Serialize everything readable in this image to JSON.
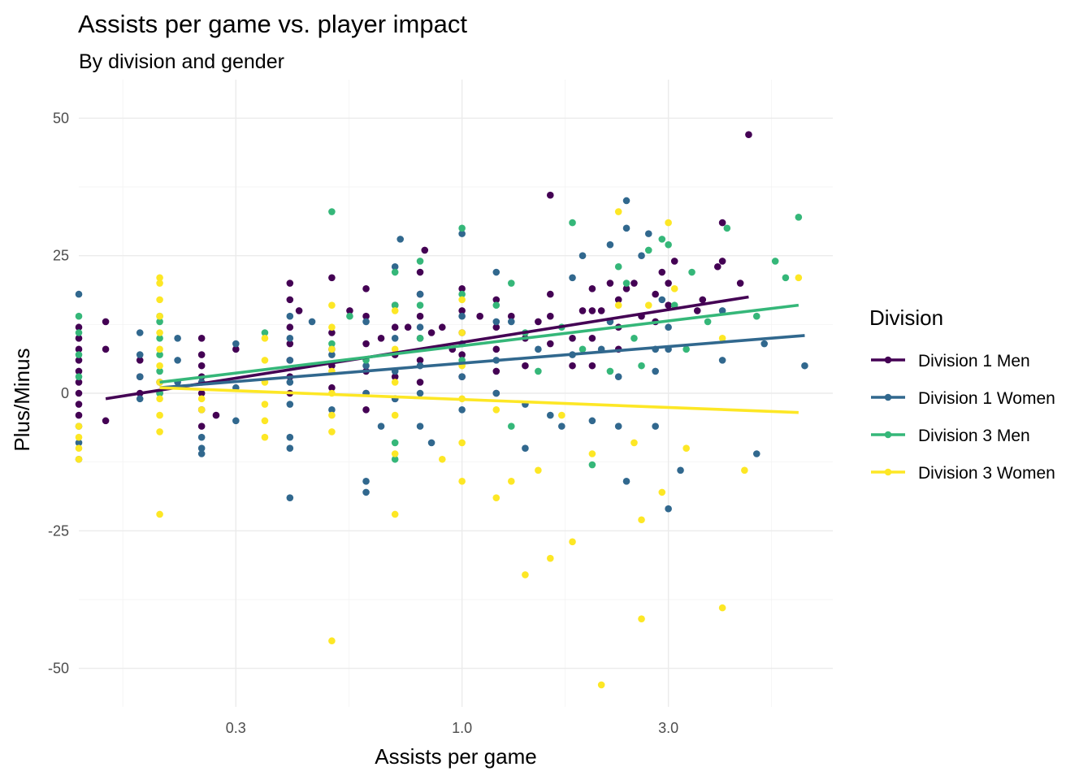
{
  "chart_data": {
    "type": "scatter",
    "title": "Assists per game vs. player impact",
    "subtitle": "By division and gender",
    "xlabel": "Assists per game",
    "ylabel": "Plus/Minus",
    "x_scale": "log10",
    "xlim": [
      0.13,
      7.2
    ],
    "ylim": [
      -57,
      57
    ],
    "x_ticks": [
      0.3,
      1.0,
      3.0
    ],
    "x_tick_labels": [
      "0.3",
      "1.0",
      "3.0"
    ],
    "y_ticks": [
      -50,
      -25,
      0,
      25,
      50
    ],
    "y_tick_labels": [
      "-50",
      "-25",
      "0",
      "25",
      "50"
    ],
    "grid": true,
    "legend": {
      "title": "Division",
      "position": "right"
    },
    "series": [
      {
        "name": "Division 1 Men",
        "color": "#440154",
        "trend": {
          "x": [
            0.15,
            4.6
          ],
          "y": [
            -1,
            17.5
          ]
        },
        "points": [
          [
            0.13,
            12
          ],
          [
            0.13,
            10
          ],
          [
            0.13,
            8
          ],
          [
            0.13,
            6
          ],
          [
            0.13,
            4
          ],
          [
            0.13,
            2
          ],
          [
            0.13,
            0
          ],
          [
            0.13,
            -2
          ],
          [
            0.13,
            -4
          ],
          [
            0.15,
            13
          ],
          [
            0.15,
            8
          ],
          [
            0.15,
            -5
          ],
          [
            0.18,
            6
          ],
          [
            0.18,
            3
          ],
          [
            0.18,
            0
          ],
          [
            0.2,
            2
          ],
          [
            0.2,
            0
          ],
          [
            0.25,
            10
          ],
          [
            0.25,
            7
          ],
          [
            0.25,
            5
          ],
          [
            0.25,
            3
          ],
          [
            0.25,
            0
          ],
          [
            0.25,
            -3
          ],
          [
            0.25,
            -6
          ],
          [
            0.27,
            -4
          ],
          [
            0.3,
            8
          ],
          [
            0.4,
            20
          ],
          [
            0.4,
            17
          ],
          [
            0.4,
            12
          ],
          [
            0.4,
            9
          ],
          [
            0.4,
            6
          ],
          [
            0.4,
            3
          ],
          [
            0.4,
            0
          ],
          [
            0.42,
            15
          ],
          [
            0.5,
            21
          ],
          [
            0.5,
            11
          ],
          [
            0.5,
            8
          ],
          [
            0.5,
            5
          ],
          [
            0.5,
            1
          ],
          [
            0.55,
            15
          ],
          [
            0.6,
            19
          ],
          [
            0.6,
            14
          ],
          [
            0.6,
            9
          ],
          [
            0.6,
            4
          ],
          [
            0.6,
            0
          ],
          [
            0.6,
            -3
          ],
          [
            0.65,
            10
          ],
          [
            0.7,
            16
          ],
          [
            0.7,
            12
          ],
          [
            0.7,
            7
          ],
          [
            0.7,
            3
          ],
          [
            0.7,
            -1
          ],
          [
            0.75,
            12
          ],
          [
            0.8,
            22
          ],
          [
            0.8,
            18
          ],
          [
            0.8,
            14
          ],
          [
            0.8,
            10
          ],
          [
            0.8,
            6
          ],
          [
            0.8,
            2
          ],
          [
            0.82,
            26
          ],
          [
            0.85,
            11
          ],
          [
            0.9,
            12
          ],
          [
            0.95,
            8
          ],
          [
            1.0,
            19
          ],
          [
            1.0,
            15
          ],
          [
            1.0,
            11
          ],
          [
            1.0,
            7
          ],
          [
            1.0,
            3
          ],
          [
            1.1,
            14
          ],
          [
            1.2,
            17
          ],
          [
            1.2,
            12
          ],
          [
            1.2,
            8
          ],
          [
            1.2,
            4
          ],
          [
            1.2,
            0
          ],
          [
            1.3,
            14
          ],
          [
            1.4,
            10
          ],
          [
            1.4,
            5
          ],
          [
            1.5,
            13
          ],
          [
            1.6,
            36
          ],
          [
            1.6,
            18
          ],
          [
            1.6,
            14
          ],
          [
            1.6,
            9
          ],
          [
            1.8,
            5
          ],
          [
            1.8,
            10
          ],
          [
            1.9,
            15
          ],
          [
            2.0,
            19
          ],
          [
            2.0,
            15
          ],
          [
            2.0,
            10
          ],
          [
            2.0,
            5
          ],
          [
            2.1,
            15
          ],
          [
            2.2,
            20
          ],
          [
            2.3,
            17
          ],
          [
            2.3,
            12
          ],
          [
            2.3,
            8
          ],
          [
            2.4,
            19
          ],
          [
            2.5,
            20
          ],
          [
            2.6,
            14
          ],
          [
            2.8,
            18
          ],
          [
            2.8,
            13
          ],
          [
            2.9,
            22
          ],
          [
            3.0,
            20
          ],
          [
            3.0,
            16
          ],
          [
            3.1,
            24
          ],
          [
            3.5,
            15
          ],
          [
            3.6,
            17
          ],
          [
            3.9,
            23
          ],
          [
            4.0,
            31
          ],
          [
            4.0,
            24
          ],
          [
            4.4,
            20
          ],
          [
            4.6,
            47
          ]
        ]
      },
      {
        "name": "Division 1 Women",
        "color": "#31688e",
        "trend": {
          "x": [
            0.2,
            6.2
          ],
          "y": [
            1,
            10.5
          ]
        },
        "points": [
          [
            0.13,
            18
          ],
          [
            0.13,
            -6
          ],
          [
            0.13,
            -9
          ],
          [
            0.13,
            -12
          ],
          [
            0.18,
            11
          ],
          [
            0.18,
            7
          ],
          [
            0.18,
            3
          ],
          [
            0.18,
            -1
          ],
          [
            0.22,
            10
          ],
          [
            0.22,
            6
          ],
          [
            0.22,
            2
          ],
          [
            0.25,
            2
          ],
          [
            0.25,
            -8
          ],
          [
            0.25,
            -10
          ],
          [
            0.25,
            -11
          ],
          [
            0.3,
            9
          ],
          [
            0.3,
            1
          ],
          [
            0.3,
            -5
          ],
          [
            0.4,
            14
          ],
          [
            0.4,
            10
          ],
          [
            0.4,
            6
          ],
          [
            0.4,
            2
          ],
          [
            0.4,
            -2
          ],
          [
            0.4,
            -8
          ],
          [
            0.4,
            -10
          ],
          [
            0.4,
            -19
          ],
          [
            0.45,
            13
          ],
          [
            0.5,
            7
          ],
          [
            0.5,
            -3
          ],
          [
            0.6,
            13
          ],
          [
            0.6,
            5
          ],
          [
            0.6,
            0
          ],
          [
            0.6,
            -16
          ],
          [
            0.6,
            -18
          ],
          [
            0.65,
            -6
          ],
          [
            0.7,
            23
          ],
          [
            0.7,
            10
          ],
          [
            0.7,
            4
          ],
          [
            0.7,
            -1
          ],
          [
            0.72,
            28
          ],
          [
            0.8,
            18
          ],
          [
            0.8,
            12
          ],
          [
            0.8,
            5
          ],
          [
            0.8,
            0
          ],
          [
            0.8,
            -6
          ],
          [
            0.85,
            -9
          ],
          [
            1.0,
            29
          ],
          [
            1.0,
            14
          ],
          [
            1.0,
            9
          ],
          [
            1.0,
            3
          ],
          [
            1.0,
            -3
          ],
          [
            1.2,
            22
          ],
          [
            1.2,
            13
          ],
          [
            1.2,
            6
          ],
          [
            1.2,
            0
          ],
          [
            1.3,
            13
          ],
          [
            1.4,
            -10
          ],
          [
            1.4,
            -2
          ],
          [
            1.5,
            8
          ],
          [
            1.6,
            -4
          ],
          [
            1.7,
            -6
          ],
          [
            1.8,
            21
          ],
          [
            1.8,
            7
          ],
          [
            1.9,
            25
          ],
          [
            2.0,
            -5
          ],
          [
            2.1,
            8
          ],
          [
            2.2,
            27
          ],
          [
            2.2,
            13
          ],
          [
            2.3,
            -6
          ],
          [
            2.3,
            3
          ],
          [
            2.4,
            35
          ],
          [
            2.4,
            30
          ],
          [
            2.4,
            -16
          ],
          [
            2.6,
            25
          ],
          [
            2.7,
            29
          ],
          [
            2.8,
            8
          ],
          [
            2.8,
            4
          ],
          [
            2.8,
            -6
          ],
          [
            2.9,
            17
          ],
          [
            3.0,
            -21
          ],
          [
            3.0,
            12
          ],
          [
            3.0,
            8
          ],
          [
            3.2,
            -14
          ],
          [
            4.0,
            15
          ],
          [
            4.0,
            6
          ],
          [
            4.8,
            -11
          ],
          [
            5.0,
            9
          ],
          [
            6.2,
            5
          ]
        ]
      },
      {
        "name": "Division 3 Men",
        "color": "#35b779",
        "trend": {
          "x": [
            0.2,
            6.0
          ],
          "y": [
            2,
            16
          ]
        },
        "points": [
          [
            0.13,
            14
          ],
          [
            0.13,
            11
          ],
          [
            0.13,
            7
          ],
          [
            0.13,
            3
          ],
          [
            0.2,
            14
          ],
          [
            0.2,
            13
          ],
          [
            0.2,
            10
          ],
          [
            0.2,
            7
          ],
          [
            0.2,
            4
          ],
          [
            0.2,
            0
          ],
          [
            0.35,
            11
          ],
          [
            0.5,
            33
          ],
          [
            0.5,
            9
          ],
          [
            0.55,
            14
          ],
          [
            0.6,
            6
          ],
          [
            0.7,
            16
          ],
          [
            0.7,
            22
          ],
          [
            0.7,
            -9
          ],
          [
            0.7,
            -12
          ],
          [
            0.8,
            24
          ],
          [
            0.8,
            10
          ],
          [
            0.8,
            16
          ],
          [
            1.0,
            30
          ],
          [
            1.0,
            18
          ],
          [
            1.0,
            6
          ],
          [
            1.2,
            16
          ],
          [
            1.3,
            20
          ],
          [
            1.3,
            -6
          ],
          [
            1.4,
            11
          ],
          [
            1.5,
            4
          ],
          [
            1.7,
            12
          ],
          [
            1.8,
            31
          ],
          [
            1.9,
            8
          ],
          [
            2.0,
            -13
          ],
          [
            2.2,
            4
          ],
          [
            2.3,
            23
          ],
          [
            2.4,
            20
          ],
          [
            2.5,
            10
          ],
          [
            2.6,
            5
          ],
          [
            2.7,
            26
          ],
          [
            2.9,
            28
          ],
          [
            3.0,
            27
          ],
          [
            3.1,
            16
          ],
          [
            3.3,
            8
          ],
          [
            3.4,
            22
          ],
          [
            3.7,
            13
          ],
          [
            4.1,
            30
          ],
          [
            4.8,
            14
          ],
          [
            5.3,
            24
          ],
          [
            5.6,
            21
          ],
          [
            6.0,
            32
          ]
        ]
      },
      {
        "name": "Division 3 Women",
        "color": "#fde725",
        "trend": {
          "x": [
            0.2,
            6.0
          ],
          "y": [
            1,
            -3.5
          ]
        },
        "points": [
          [
            0.13,
            -6
          ],
          [
            0.13,
            -8
          ],
          [
            0.13,
            -10
          ],
          [
            0.13,
            -12
          ],
          [
            0.2,
            21
          ],
          [
            0.2,
            20
          ],
          [
            0.2,
            17
          ],
          [
            0.2,
            14
          ],
          [
            0.2,
            11
          ],
          [
            0.2,
            8
          ],
          [
            0.2,
            5
          ],
          [
            0.2,
            2
          ],
          [
            0.2,
            -1
          ],
          [
            0.2,
            -4
          ],
          [
            0.2,
            -7
          ],
          [
            0.2,
            -22
          ],
          [
            0.25,
            -1
          ],
          [
            0.25,
            -3
          ],
          [
            0.35,
            10
          ],
          [
            0.35,
            6
          ],
          [
            0.35,
            2
          ],
          [
            0.35,
            -2
          ],
          [
            0.35,
            -5
          ],
          [
            0.35,
            -8
          ],
          [
            0.5,
            16
          ],
          [
            0.5,
            12
          ],
          [
            0.5,
            8
          ],
          [
            0.5,
            4
          ],
          [
            0.5,
            0
          ],
          [
            0.5,
            -4
          ],
          [
            0.5,
            -7
          ],
          [
            0.5,
            -45
          ],
          [
            0.7,
            15
          ],
          [
            0.7,
            8
          ],
          [
            0.7,
            2
          ],
          [
            0.7,
            -4
          ],
          [
            0.7,
            -11
          ],
          [
            0.7,
            -22
          ],
          [
            0.9,
            -12
          ],
          [
            1.0,
            17
          ],
          [
            1.0,
            11
          ],
          [
            1.0,
            5
          ],
          [
            1.0,
            -1
          ],
          [
            1.0,
            -9
          ],
          [
            1.0,
            -16
          ],
          [
            1.2,
            -19
          ],
          [
            1.2,
            -3
          ],
          [
            1.3,
            -16
          ],
          [
            1.4,
            -33
          ],
          [
            1.5,
            -14
          ],
          [
            1.6,
            -30
          ],
          [
            1.7,
            -4
          ],
          [
            1.8,
            -27
          ],
          [
            2.0,
            -11
          ],
          [
            2.1,
            -53
          ],
          [
            2.3,
            33
          ],
          [
            2.3,
            16
          ],
          [
            2.5,
            -9
          ],
          [
            2.6,
            -41
          ],
          [
            2.6,
            -23
          ],
          [
            2.7,
            16
          ],
          [
            2.9,
            -18
          ],
          [
            3.0,
            31
          ],
          [
            3.1,
            19
          ],
          [
            3.3,
            -10
          ],
          [
            4.0,
            10
          ],
          [
            4.0,
            -39
          ],
          [
            4.5,
            -14
          ],
          [
            6.0,
            21
          ]
        ]
      }
    ]
  }
}
